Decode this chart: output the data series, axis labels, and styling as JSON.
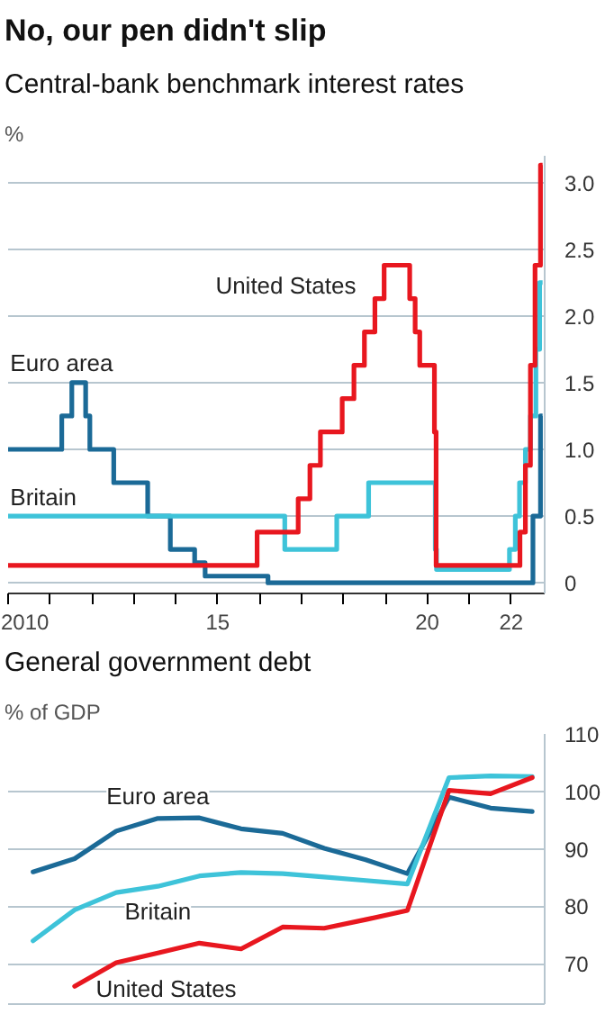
{
  "chart_data": [
    {
      "type": "step",
      "title": "No, our pen didn't slip",
      "subtitle": "Central-bank benchmark interest rates",
      "ylabel": "%",
      "grid": "y",
      "legend": false,
      "xlim": [
        2010,
        2022.8
      ],
      "ylim": [
        -0.08,
        3.2
      ],
      "xticks": [
        2010,
        {
          "value": 2011,
          "label": null
        },
        {
          "value": 2012,
          "label": null
        },
        {
          "value": 2013,
          "label": null
        },
        {
          "value": 2014,
          "label": null
        },
        {
          "value": 2015,
          "label": "15"
        },
        {
          "value": 2016,
          "label": null
        },
        {
          "value": 2017,
          "label": null
        },
        {
          "value": 2018,
          "label": null
        },
        {
          "value": 2019,
          "label": null
        },
        {
          "value": 2020,
          "label": "20"
        },
        {
          "value": 2021,
          "label": null
        },
        {
          "value": 2022,
          "label": "22"
        }
      ],
      "yticks": [
        {
          "value": 0,
          "label": "0"
        },
        {
          "value": 0.5,
          "label": "0.5"
        },
        {
          "value": 1,
          "label": "1.0"
        },
        {
          "value": 1.5,
          "label": "1.5"
        },
        {
          "value": 2,
          "label": "2.0"
        },
        {
          "value": 2.5,
          "label": "2.5"
        },
        {
          "value": 3,
          "label": "3.0"
        }
      ],
      "series": [
        {
          "name": "Euro area",
          "color": "#1b6a97",
          "x": [
            2010,
            2011.28,
            2011.52,
            2011.85,
            2011.95,
            2012.52,
            2013.33,
            2013.87,
            2014.45,
            2014.7,
            2016.2,
            2022.52,
            2022.7,
            2022.75
          ],
          "values": [
            1.0,
            1.25,
            1.5,
            1.25,
            1.0,
            0.75,
            0.5,
            0.25,
            0.15,
            0.05,
            0.0,
            0.5,
            1.25,
            1.25
          ]
        },
        {
          "name": "Britain",
          "color": "#3ec3d9",
          "x": [
            2010,
            2016.6,
            2017.84,
            2018.6,
            2020.19,
            2020.22,
            2021.96,
            2022.1,
            2022.2,
            2022.34,
            2022.46,
            2022.59,
            2022.68,
            2022.75
          ],
          "values": [
            0.5,
            0.25,
            0.5,
            0.75,
            0.25,
            0.1,
            0.25,
            0.5,
            0.75,
            1.0,
            1.25,
            1.75,
            2.25,
            2.25
          ]
        },
        {
          "name": "United States",
          "color": "#e8171f",
          "x": [
            2010,
            2015.94,
            2016.92,
            2017.2,
            2017.45,
            2017.97,
            2018.25,
            2018.5,
            2018.75,
            2018.97,
            2019.58,
            2019.71,
            2019.82,
            2020.17,
            2020.21,
            2022.21,
            2022.34,
            2022.46,
            2022.57,
            2022.7,
            2022.75
          ],
          "values": [
            0.13,
            0.38,
            0.63,
            0.88,
            1.13,
            1.38,
            1.63,
            1.88,
            2.13,
            2.38,
            2.13,
            1.88,
            1.63,
            1.13,
            0.13,
            0.38,
            0.88,
            1.63,
            2.38,
            3.13,
            3.13
          ]
        }
      ]
    },
    {
      "type": "line",
      "title": "General government debt",
      "ylabel": "% of GDP",
      "grid": "y",
      "legend": false,
      "tick_labels": "y",
      "categories": [
        null,
        null,
        null,
        null,
        null,
        null,
        null,
        null,
        null,
        null,
        null,
        null,
        null
      ],
      "ylim": [
        63,
        110
      ],
      "yticks": [
        70,
        80,
        90,
        100,
        110
      ],
      "series": [
        {
          "name": "Euro area",
          "color": "#1b6a97",
          "values": [
            86.0,
            88.3,
            93.1,
            95.3,
            95.4,
            93.5,
            92.7,
            90.1,
            88.1,
            85.7,
            99.0,
            97.1,
            96.5
          ]
        },
        {
          "name": "Britain",
          "color": "#3ec3d9",
          "values": [
            74.0,
            79.4,
            82.4,
            83.5,
            85.3,
            85.9,
            85.7,
            85.1,
            84.5,
            83.9,
            102.4,
            102.7,
            102.6
          ]
        },
        {
          "name": "United States",
          "color": "#e8171f",
          "values": [
            null,
            66.1,
            70.2,
            71.9,
            73.6,
            72.6,
            76.4,
            76.2,
            77.7,
            79.3,
            100.2,
            99.6,
            102.4
          ]
        }
      ]
    }
  ]
}
